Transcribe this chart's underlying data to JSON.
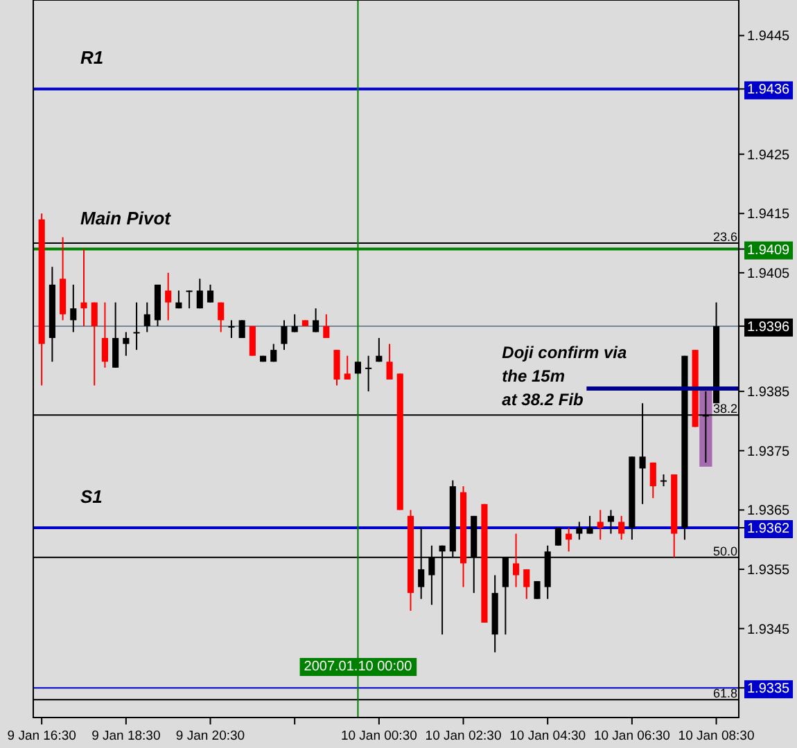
{
  "chart_data": {
    "type": "candlestick",
    "x": [
      "2007-01-09T16:30",
      "2007-01-09T16:45",
      "2007-01-09T17:00",
      "2007-01-09T17:15",
      "2007-01-09T17:30",
      "2007-01-09T17:45",
      "2007-01-09T18:00",
      "2007-01-09T18:15",
      "2007-01-09T18:30",
      "2007-01-09T18:45",
      "2007-01-09T19:00",
      "2007-01-09T19:15",
      "2007-01-09T19:30",
      "2007-01-09T19:45",
      "2007-01-09T20:00",
      "2007-01-09T20:15",
      "2007-01-09T20:30",
      "2007-01-09T20:45",
      "2007-01-09T21:00",
      "2007-01-09T21:15",
      "2007-01-09T21:30",
      "2007-01-09T21:45",
      "2007-01-09T22:00",
      "2007-01-09T22:15",
      "2007-01-09T22:30",
      "2007-01-09T22:45",
      "2007-01-09T23:00",
      "2007-01-09T23:15",
      "2007-01-09T23:30",
      "2007-01-09T23:45",
      "2007-01-10T00:00",
      "2007-01-10T00:15",
      "2007-01-10T00:30",
      "2007-01-10T00:45",
      "2007-01-10T01:00",
      "2007-01-10T01:15",
      "2007-01-10T01:30",
      "2007-01-10T01:45",
      "2007-01-10T02:00",
      "2007-01-10T02:15",
      "2007-01-10T02:30",
      "2007-01-10T02:45",
      "2007-01-10T03:00",
      "2007-01-10T03:15",
      "2007-01-10T03:30",
      "2007-01-10T03:45",
      "2007-01-10T04:00",
      "2007-01-10T04:15",
      "2007-01-10T04:30",
      "2007-01-10T04:45",
      "2007-01-10T05:00",
      "2007-01-10T05:15",
      "2007-01-10T05:30",
      "2007-01-10T05:45",
      "2007-01-10T06:00",
      "2007-01-10T06:15",
      "2007-01-10T06:30",
      "2007-01-10T06:45",
      "2007-01-10T07:00",
      "2007-01-10T07:15",
      "2007-01-10T07:30",
      "2007-01-10T07:45",
      "2007-01-10T08:00",
      "2007-01-10T08:15",
      "2007-01-10T08:30"
    ],
    "ohlc": [
      [
        1.9414,
        1.9415,
        1.9386,
        1.9393
      ],
      [
        1.9394,
        1.9406,
        1.939,
        1.9403
      ],
      [
        1.9404,
        1.9411,
        1.9397,
        1.9398
      ],
      [
        1.9397,
        1.9403,
        1.9395,
        1.9399
      ],
      [
        1.94,
        1.9409,
        1.9396,
        1.9399
      ],
      [
        1.94,
        1.94,
        1.9386,
        1.9396
      ],
      [
        1.9394,
        1.94,
        1.9389,
        1.939
      ],
      [
        1.9389,
        1.94,
        1.9389,
        1.9394
      ],
      [
        1.9393,
        1.9395,
        1.9391,
        1.9394
      ],
      [
        1.9395,
        1.94,
        1.9392,
        1.9395
      ],
      [
        1.9396,
        1.94,
        1.9395,
        1.9398
      ],
      [
        1.9397,
        1.9403,
        1.9396,
        1.9403
      ],
      [
        1.9402,
        1.9405,
        1.9397,
        1.94
      ],
      [
        1.9399,
        1.9402,
        1.9399,
        1.94
      ],
      [
        1.9402,
        1.9402,
        1.9399,
        1.9402
      ],
      [
        1.9399,
        1.9404,
        1.9399,
        1.9402
      ],
      [
        1.94,
        1.9403,
        1.94,
        1.9402
      ],
      [
        1.94,
        1.94,
        1.9395,
        1.9397
      ],
      [
        1.9396,
        1.9397,
        1.9394,
        1.9396
      ],
      [
        1.9394,
        1.9397,
        1.9394,
        1.9397
      ],
      [
        1.9396,
        1.9396,
        1.9391,
        1.9391
      ],
      [
        1.939,
        1.9391,
        1.939,
        1.9391
      ],
      [
        1.939,
        1.9393,
        1.939,
        1.9392
      ],
      [
        1.9393,
        1.9397,
        1.9392,
        1.9396
      ],
      [
        1.9395,
        1.9398,
        1.9395,
        1.9396
      ],
      [
        1.9397,
        1.9397,
        1.9396,
        1.9396
      ],
      [
        1.9395,
        1.9399,
        1.9395,
        1.9397
      ],
      [
        1.9396,
        1.9398,
        1.9394,
        1.9394
      ],
      [
        1.9392,
        1.9392,
        1.9386,
        1.9387
      ],
      [
        1.9388,
        1.9391,
        1.9387,
        1.9387
      ],
      [
        1.9388,
        1.939,
        1.9388,
        1.939
      ],
      [
        1.9389,
        1.9391,
        1.9385,
        1.9389
      ],
      [
        1.939,
        1.9394,
        1.939,
        1.9391
      ],
      [
        1.939,
        1.9393,
        1.9387,
        1.9387
      ],
      [
        1.9388,
        1.9388,
        1.9365,
        1.9365
      ],
      [
        1.9364,
        1.9365,
        1.9348,
        1.9351
      ],
      [
        1.9352,
        1.9362,
        1.935,
        1.9355
      ],
      [
        1.9354,
        1.9359,
        1.9349,
        1.9357
      ],
      [
        1.9358,
        1.9359,
        1.9344,
        1.9359
      ],
      [
        1.9358,
        1.937,
        1.9357,
        1.9369
      ],
      [
        1.9368,
        1.9369,
        1.9352,
        1.9356
      ],
      [
        1.9357,
        1.9364,
        1.9351,
        1.9364
      ],
      [
        1.9366,
        1.9366,
        1.9346,
        1.9346
      ],
      [
        1.9344,
        1.9354,
        1.9341,
        1.9351
      ],
      [
        1.9352,
        1.9357,
        1.9344,
        1.9357
      ],
      [
        1.9356,
        1.9361,
        1.9352,
        1.9354
      ],
      [
        1.9355,
        1.9355,
        1.935,
        1.9352
      ],
      [
        1.935,
        1.9353,
        1.935,
        1.9353
      ],
      [
        1.9352,
        1.9359,
        1.935,
        1.9358
      ],
      [
        1.9359,
        1.9362,
        1.9359,
        1.9362
      ],
      [
        1.9361,
        1.9362,
        1.9358,
        1.936
      ],
      [
        1.9361,
        1.9363,
        1.936,
        1.9362
      ],
      [
        1.9361,
        1.9364,
        1.9361,
        1.9362
      ],
      [
        1.9363,
        1.9365,
        1.936,
        1.9362
      ],
      [
        1.9363,
        1.9365,
        1.9361,
        1.9364
      ],
      [
        1.9363,
        1.9364,
        1.936,
        1.9361
      ],
      [
        1.9362,
        1.9374,
        1.936,
        1.9374
      ],
      [
        1.9372,
        1.9383,
        1.9366,
        1.9374
      ],
      [
        1.9373,
        1.9373,
        1.9367,
        1.9369
      ],
      [
        1.937,
        1.9371,
        1.9369,
        1.937
      ],
      [
        1.9371,
        1.9371,
        1.9357,
        1.9361
      ],
      [
        1.9362,
        1.9391,
        1.936,
        1.9391
      ],
      [
        1.9392,
        1.9392,
        1.9379,
        1.9379
      ],
      [
        1.9381,
        1.9385,
        1.9373,
        1.9381
      ],
      [
        1.9383,
        1.94,
        1.9383,
        1.9396
      ]
    ],
    "colors": [
      "#ff0000",
      "#000000",
      "#ff0000",
      "#000000",
      "#ff0000",
      "#ff0000",
      "#ff0000",
      "#000000",
      "#000000",
      "#000000",
      "#000000",
      "#000000",
      "#ff0000",
      "#000000",
      "#000000",
      "#000000",
      "#000000",
      "#ff0000",
      "#000000",
      "#000000",
      "#ff0000",
      "#000000",
      "#000000",
      "#000000",
      "#000000",
      "#ff0000",
      "#000000",
      "#ff0000",
      "#ff0000",
      "#ff0000",
      "#000000",
      "#000000",
      "#000000",
      "#ff0000",
      "#ff0000",
      "#ff0000",
      "#000000",
      "#000000",
      "#000000",
      "#000000",
      "#ff0000",
      "#000000",
      "#ff0000",
      "#000000",
      "#000000",
      "#ff0000",
      "#ff0000",
      "#000000",
      "#000000",
      "#000000",
      "#ff0000",
      "#000000",
      "#000000",
      "#ff0000",
      "#000000",
      "#ff0000",
      "#000000",
      "#000000",
      "#ff0000",
      "#000000",
      "#ff0000",
      "#000000",
      "#ff0000",
      "#000000",
      "#000000"
    ],
    "xlim": [
      "2007-01-09T16:18",
      "2007-01-10T09:02"
    ],
    "xticks": [
      {
        "value": "2007-01-09T16:30",
        "label": "9 Jan 16:30"
      },
      {
        "value": "2007-01-09T18:30",
        "label": "9 Jan 18:30"
      },
      {
        "value": "2007-01-09T20:30",
        "label": "9 Jan 20:30"
      },
      {
        "value": "2007-01-09T22:30",
        "label": null
      },
      {
        "value": "2007-01-10T00:30",
        "label": "10 Jan 00:30"
      },
      {
        "value": "2007-01-10T02:30",
        "label": "10 Jan 02:30"
      },
      {
        "value": "2007-01-10T04:30",
        "label": "10 Jan 04:30"
      },
      {
        "value": "2007-01-10T06:30",
        "label": "10 Jan 06:30"
      },
      {
        "value": "2007-01-10T08:30",
        "label": "10 Jan 08:30"
      }
    ],
    "ylim": [
      1.933,
      1.9451
    ],
    "yticks": [
      1.9445,
      1.9436,
      1.9425,
      1.9415,
      1.9409,
      1.9405,
      1.9396,
      1.9385,
      1.9375,
      1.9365,
      1.9362,
      1.9355,
      1.9345,
      1.9335
    ],
    "ref_lines": [
      {
        "axis": "y",
        "value": 1.9436,
        "label": "R1",
        "color": "#0000cc"
      },
      {
        "axis": "y",
        "value": 1.9409,
        "label": "Main Pivot",
        "color": "#008000"
      },
      {
        "axis": "y",
        "value": 1.9396,
        "color": "#778899"
      },
      {
        "axis": "y",
        "value": 1.9362,
        "label": "S1",
        "color": "#0000cc"
      },
      {
        "axis": "y",
        "value": 1.9335,
        "color": "#0000cc"
      },
      {
        "axis": "y",
        "value": 1.941,
        "color": "#000000"
      },
      {
        "axis": "y",
        "value": 1.9381,
        "color": "#000000"
      },
      {
        "axis": "y",
        "value": 1.9357,
        "color": "#000000"
      },
      {
        "axis": "y",
        "value": 1.9333,
        "color": "#000000"
      },
      {
        "axis": "x",
        "value": "2007-01-10T00:00",
        "label": "2007.01.10 00:00",
        "color": "#008000"
      }
    ],
    "annotations": [
      "Doji confirm via\nthe 15m\nat 38.2 Fib",
      {
        "text": "23.6",
        "x": "2007-01-10T09:00",
        "y": 1.941
      },
      {
        "text": "38.2",
        "x": "2007-01-10T09:00",
        "y": 1.9381
      },
      {
        "text": "50.0",
        "x": "2007-01-10T09:00",
        "y": 1.9357
      },
      {
        "text": "61.8",
        "x": "2007-01-10T09:00",
        "y": 1.9333
      }
    ]
  }
}
